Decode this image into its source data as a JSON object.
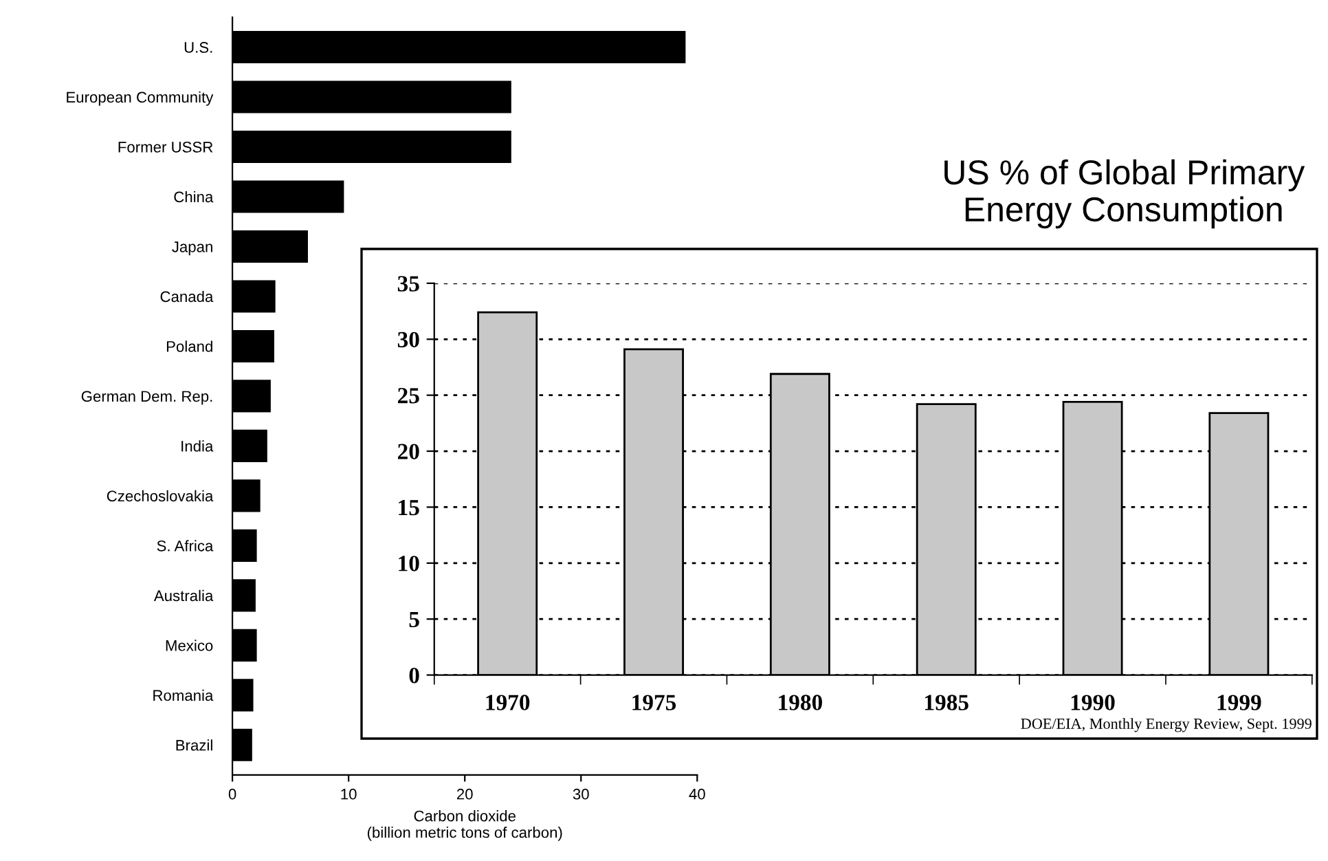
{
  "chart_data": [
    {
      "type": "bar",
      "orientation": "horizontal",
      "categories": [
        "U.S.",
        "European Community",
        "Former USSR",
        "China",
        "Japan",
        "Canada",
        "Poland",
        "German Dem. Rep.",
        "India",
        "Czechoslovakia",
        "S. Africa",
        "Australia",
        "Mexico",
        "Romania",
        "Brazil"
      ],
      "values": [
        39.0,
        24.0,
        24.0,
        9.6,
        6.5,
        3.7,
        3.6,
        3.3,
        3.0,
        2.4,
        2.1,
        2.0,
        2.1,
        1.8,
        1.7
      ],
      "color": "#000000",
      "xlim": [
        0,
        40
      ],
      "xticks": [
        0,
        10,
        20,
        30,
        40
      ],
      "xlabel": "Carbon dioxide\n(billion metric tons of carbon)"
    },
    {
      "type": "bar",
      "title": "US % of Global Primary\nEnergy Consumption",
      "categories": [
        "1970",
        "1975",
        "1980",
        "1985",
        "1990",
        "1999"
      ],
      "values": [
        32.4,
        29.1,
        26.9,
        24.2,
        24.4,
        23.4
      ],
      "color": "#c8c8c8",
      "ylim": [
        0,
        35
      ],
      "yticks": [
        0,
        5,
        10,
        15,
        20,
        25,
        30,
        35
      ],
      "grid": "y",
      "annotations": [
        "DOE/EIA, Monthly Energy Review, Sept. 1999"
      ]
    }
  ]
}
